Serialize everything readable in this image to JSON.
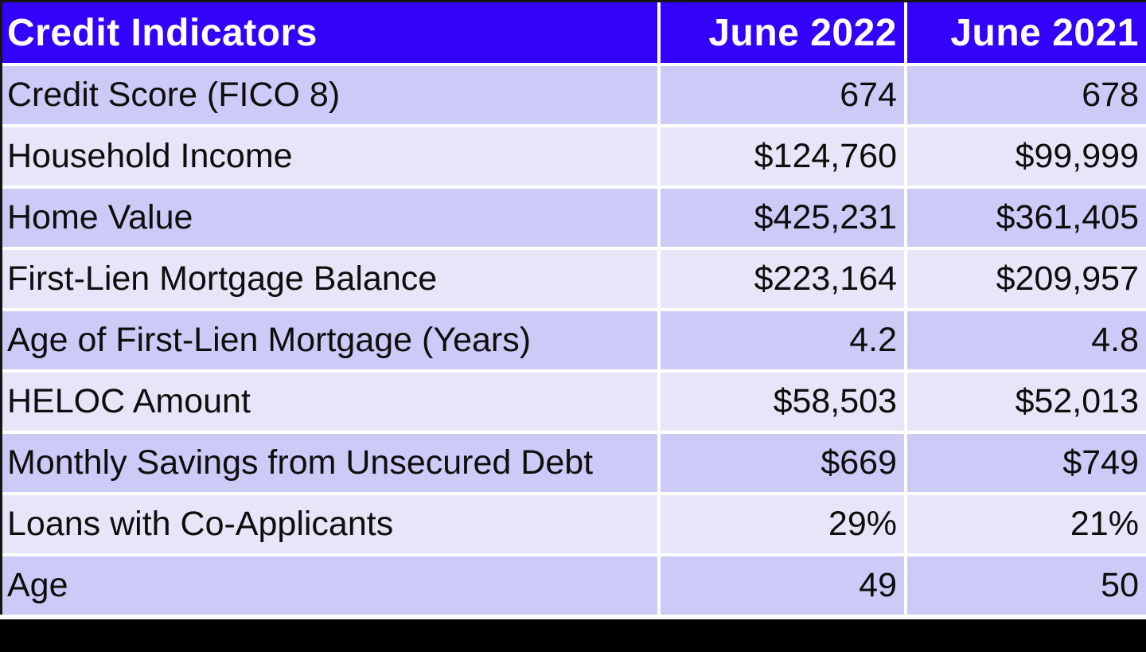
{
  "table": {
    "header": {
      "title": "Credit Indicators",
      "col_2022": "June 2022",
      "col_2021": "June 2021"
    },
    "rows": [
      {
        "label": "Credit Score (FICO 8)",
        "jun2022": "674",
        "jun2021": "678"
      },
      {
        "label": "Household Income",
        "jun2022": "$124,760",
        "jun2021": "$99,999"
      },
      {
        "label": "Home Value",
        "jun2022": "$425,231",
        "jun2021": "$361,405"
      },
      {
        "label": "First-Lien Mortgage Balance",
        "jun2022": "$223,164",
        "jun2021": "$209,957"
      },
      {
        "label": "Age of First-Lien Mortgage (Years)",
        "jun2022": "4.2",
        "jun2021": "4.8"
      },
      {
        "label": "HELOC Amount",
        "jun2022": "$58,503",
        "jun2021": "$52,013"
      },
      {
        "label": "Monthly Savings from Unsecured Debt",
        "jun2022": "$669",
        "jun2021": "$749"
      },
      {
        "label": "Loans with Co-Applicants",
        "jun2022": "29%",
        "jun2021": "21%"
      },
      {
        "label": "Age",
        "jun2022": "49",
        "jun2021": "50"
      }
    ]
  },
  "colors": {
    "header_bg": "#3202fb",
    "header_text": "#ffffff",
    "row_odd": "#cccbf7",
    "row_even": "#e7e5f8",
    "body_text": "#0e0e0e",
    "separator": "#ffffff",
    "frame": "#141414",
    "footer_bar": "#000000"
  },
  "chart_data": {
    "type": "table",
    "title": "Credit Indicators",
    "columns": [
      "Credit Indicators",
      "June 2022",
      "June 2021"
    ],
    "rows": [
      [
        "Credit Score (FICO 8)",
        "674",
        "678"
      ],
      [
        "Household Income",
        "$124,760",
        "$99,999"
      ],
      [
        "Home Value",
        "$425,231",
        "$361,405"
      ],
      [
        "First-Lien Mortgage Balance",
        "$223,164",
        "$209,957"
      ],
      [
        "Age of First-Lien Mortgage (Years)",
        "4.2",
        "4.8"
      ],
      [
        "HELOC Amount",
        "$58,503",
        "$52,013"
      ],
      [
        "Monthly Savings from Unsecured Debt",
        "$669",
        "$749"
      ],
      [
        "Loans with Co-Applicants",
        "29%",
        "21%"
      ],
      [
        "Age",
        "49",
        "50"
      ]
    ],
    "layout_hints": {
      "header_fill": "#3202fb",
      "alternating_row_fills": [
        "#cccbf7",
        "#e7e5f8"
      ],
      "value_alignment": "right",
      "label_alignment": "left"
    }
  }
}
